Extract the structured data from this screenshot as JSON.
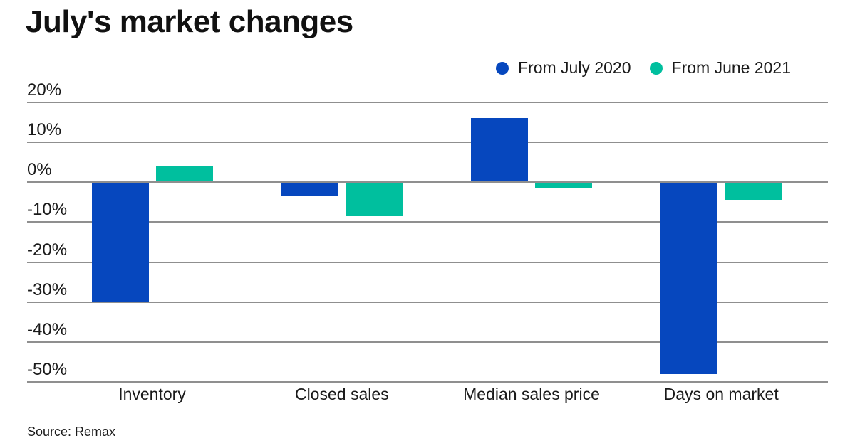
{
  "title": "July's market changes",
  "source": "Source: Remax",
  "legend": [
    {
      "label": "From July 2020",
      "color": "#0647BE"
    },
    {
      "label": "From June 2021",
      "color": "#00BF9E"
    }
  ],
  "colors": {
    "grid": "#8F8F8F",
    "text": "#1A1A1A",
    "background": "#FFFFFF",
    "series_blue": "#0647BE",
    "series_teal": "#00BF9E"
  },
  "chart_data": {
    "type": "bar",
    "title": "July's market changes",
    "categories": [
      "Inventory",
      "Closed sales",
      "Median sales price",
      "Days on market"
    ],
    "series": [
      {
        "name": "From July 2020",
        "color": "#0647BE",
        "values": [
          -30,
          -3.5,
          16,
          -48
        ]
      },
      {
        "name": "From June 2021",
        "color": "#00BF9E",
        "values": [
          4,
          -8.5,
          -1.4,
          -4.4
        ]
      }
    ],
    "xlabel": "",
    "ylabel": "",
    "unit": "%",
    "ylim": [
      -50,
      20
    ],
    "y_ticks": [
      "20%",
      "10%",
      "0%",
      "-10%",
      "-20%",
      "-30%",
      "-40%",
      "-50%"
    ],
    "y_tick_values": [
      20,
      10,
      0,
      -10,
      -20,
      -30,
      -40,
      -50
    ],
    "grid": "horizontal",
    "legend_position": "top-right",
    "source": "Source: Remax"
  }
}
